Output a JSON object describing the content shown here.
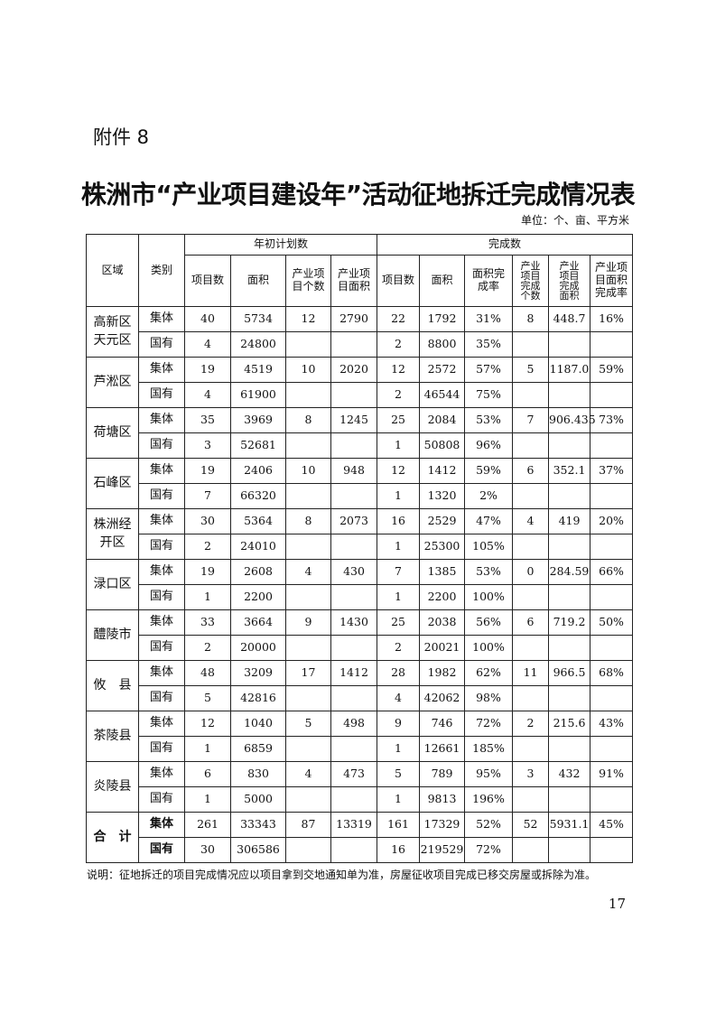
{
  "attachment": "附件 8",
  "title": "株洲市“产业项目建设年”活动征地拆迁完成情况表",
  "unit": "单位：个、亩、平方米",
  "headers": {
    "region": "区域",
    "category": "类别",
    "plan_group": "年初计划数",
    "done_group": "完成数",
    "plan_cols": [
      "项目数",
      "面积",
      "产业项目个数",
      "产业项目面积"
    ],
    "done_cols": [
      "项目数",
      "面积",
      "面积完成率",
      "产业项目完成个数",
      "产业项目完成面积",
      "产业项目面积完成率"
    ]
  },
  "regions": [
    {
      "name": "高新区天元区",
      "rows": [
        {
          "cat": "集体",
          "v": [
            "40",
            "5734",
            "12",
            "2790",
            "22",
            "1792",
            "31%",
            "8",
            "448.7",
            "16%"
          ]
        },
        {
          "cat": "国有",
          "v": [
            "4",
            "24800",
            "",
            "",
            "2",
            "8800",
            "35%",
            "",
            "",
            ""
          ]
        }
      ]
    },
    {
      "name": "芦淞区",
      "rows": [
        {
          "cat": "集体",
          "v": [
            "19",
            "4519",
            "10",
            "2020",
            "12",
            "2572",
            "57%",
            "5",
            "1187.0",
            "59%"
          ]
        },
        {
          "cat": "国有",
          "v": [
            "4",
            "61900",
            "",
            "",
            "2",
            "46544",
            "75%",
            "",
            "",
            ""
          ]
        }
      ]
    },
    {
      "name": "荷塘区",
      "rows": [
        {
          "cat": "集体",
          "v": [
            "35",
            "3969",
            "8",
            "1245",
            "25",
            "2084",
            "53%",
            "7",
            "906.435",
            "73%"
          ]
        },
        {
          "cat": "国有",
          "v": [
            "3",
            "52681",
            "",
            "",
            "1",
            "50808",
            "96%",
            "",
            "",
            ""
          ]
        }
      ]
    },
    {
      "name": "石峰区",
      "rows": [
        {
          "cat": "集体",
          "v": [
            "19",
            "2406",
            "10",
            "948",
            "12",
            "1412",
            "59%",
            "6",
            "352.1",
            "37%"
          ]
        },
        {
          "cat": "国有",
          "v": [
            "7",
            "66320",
            "",
            "",
            "1",
            "1320",
            "2%",
            "",
            "",
            ""
          ]
        }
      ]
    },
    {
      "name": "株洲经开区",
      "rows": [
        {
          "cat": "集体",
          "v": [
            "30",
            "5364",
            "8",
            "2073",
            "16",
            "2529",
            "47%",
            "4",
            "419",
            "20%"
          ]
        },
        {
          "cat": "国有",
          "v": [
            "2",
            "24010",
            "",
            "",
            "1",
            "25300",
            "105%",
            "",
            "",
            ""
          ]
        }
      ]
    },
    {
      "name": "渌口区",
      "rows": [
        {
          "cat": "集体",
          "v": [
            "19",
            "2608",
            "4",
            "430",
            "7",
            "1385",
            "53%",
            "0",
            "284.59",
            "66%"
          ]
        },
        {
          "cat": "国有",
          "v": [
            "1",
            "2200",
            "",
            "",
            "1",
            "2200",
            "100%",
            "",
            "",
            ""
          ]
        }
      ]
    },
    {
      "name": "醴陵市",
      "rows": [
        {
          "cat": "集体",
          "v": [
            "33",
            "3664",
            "9",
            "1430",
            "25",
            "2038",
            "56%",
            "6",
            "719.2",
            "50%"
          ]
        },
        {
          "cat": "国有",
          "v": [
            "2",
            "20000",
            "",
            "",
            "2",
            "20021",
            "100%",
            "",
            "",
            ""
          ]
        }
      ]
    },
    {
      "name": "攸　县",
      "rows": [
        {
          "cat": "集体",
          "v": [
            "48",
            "3209",
            "17",
            "1412",
            "28",
            "1982",
            "62%",
            "11",
            "966.5",
            "68%"
          ]
        },
        {
          "cat": "国有",
          "v": [
            "5",
            "42816",
            "",
            "",
            "4",
            "42062",
            "98%",
            "",
            "",
            ""
          ]
        }
      ]
    },
    {
      "name": "茶陵县",
      "rows": [
        {
          "cat": "集体",
          "v": [
            "12",
            "1040",
            "5",
            "498",
            "9",
            "746",
            "72%",
            "2",
            "215.6",
            "43%"
          ]
        },
        {
          "cat": "国有",
          "v": [
            "1",
            "6859",
            "",
            "",
            "1",
            "12661",
            "185%",
            "",
            "",
            ""
          ]
        }
      ]
    },
    {
      "name": "炎陵县",
      "rows": [
        {
          "cat": "集体",
          "v": [
            "6",
            "830",
            "4",
            "473",
            "5",
            "789",
            "95%",
            "3",
            "432",
            "91%"
          ]
        },
        {
          "cat": "国有",
          "v": [
            "1",
            "5000",
            "",
            "",
            "1",
            "9813",
            "196%",
            "",
            "",
            ""
          ]
        }
      ]
    },
    {
      "name": "合　计",
      "total": true,
      "rows": [
        {
          "cat": "集体",
          "v": [
            "261",
            "33343",
            "87",
            "13319",
            "161",
            "17329",
            "52%",
            "52",
            "5931.1",
            "45%"
          ]
        },
        {
          "cat": "国有",
          "v": [
            "30",
            "306586",
            "",
            "",
            "16",
            "219529",
            "72%",
            "",
            "",
            ""
          ]
        }
      ]
    }
  ],
  "note": "说明：征地拆迁的项目完成情况应以项目拿到交地通知单为准，房屋征收项目完成已移交房屋或拆除为准。",
  "page_number": "17"
}
